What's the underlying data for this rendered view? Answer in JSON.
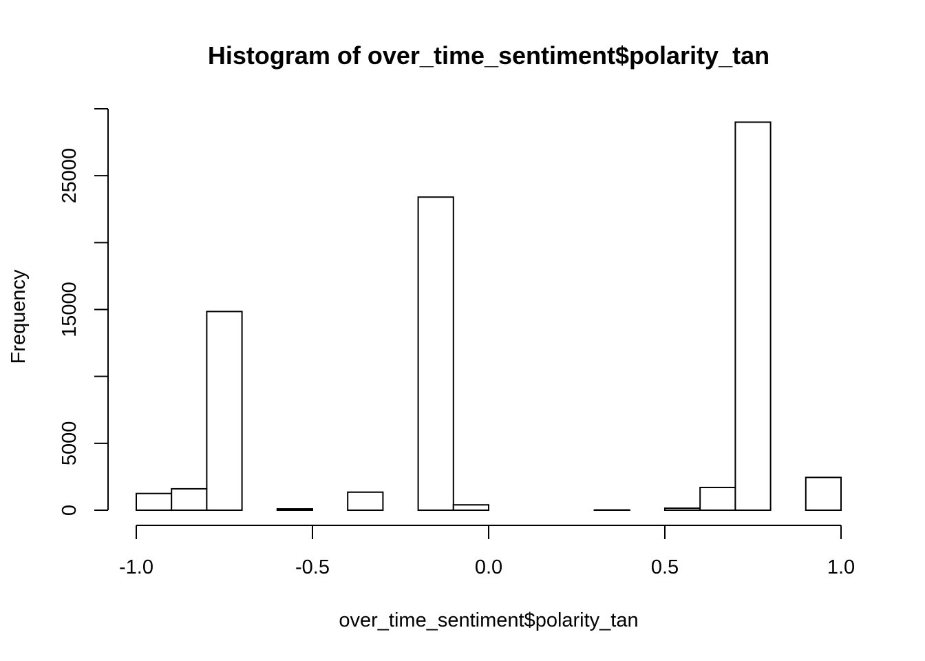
{
  "chart_data": {
    "type": "bar",
    "title": "Histogram of over_time_sentiment$polarity_tan",
    "xlabel": "over_time_sentiment$polarity_tan",
    "ylabel": "Frequency",
    "bin_edges": [
      -1.0,
      -0.9,
      -0.8,
      -0.7,
      -0.6,
      -0.5,
      -0.4,
      -0.3,
      -0.2,
      -0.1,
      0.0,
      0.1,
      0.2,
      0.3,
      0.4,
      0.5,
      0.6,
      0.7,
      0.8,
      0.9,
      1.0
    ],
    "values": [
      1250,
      1600,
      14850,
      0,
      100,
      0,
      1350,
      0,
      23400,
      400,
      0,
      0,
      0,
      20,
      0,
      150,
      1700,
      29000,
      0,
      2450
    ],
    "xlim": [
      -1.0,
      1.0
    ],
    "ylim": [
      0,
      30000
    ],
    "x_ticks": [
      -1.0,
      -0.5,
      0.0,
      0.5,
      1.0
    ],
    "x_tick_labels": [
      "-1.0",
      "-0.5",
      "0.0",
      "0.5",
      "1.0"
    ],
    "y_ticks": [
      0,
      5000,
      10000,
      15000,
      20000,
      25000,
      30000
    ],
    "y_tick_labels": [
      "0",
      "5000",
      "",
      "15000",
      "",
      "25000",
      ""
    ],
    "grid": false,
    "bar_fill": "#ffffff",
    "bar_stroke": "#000000"
  }
}
